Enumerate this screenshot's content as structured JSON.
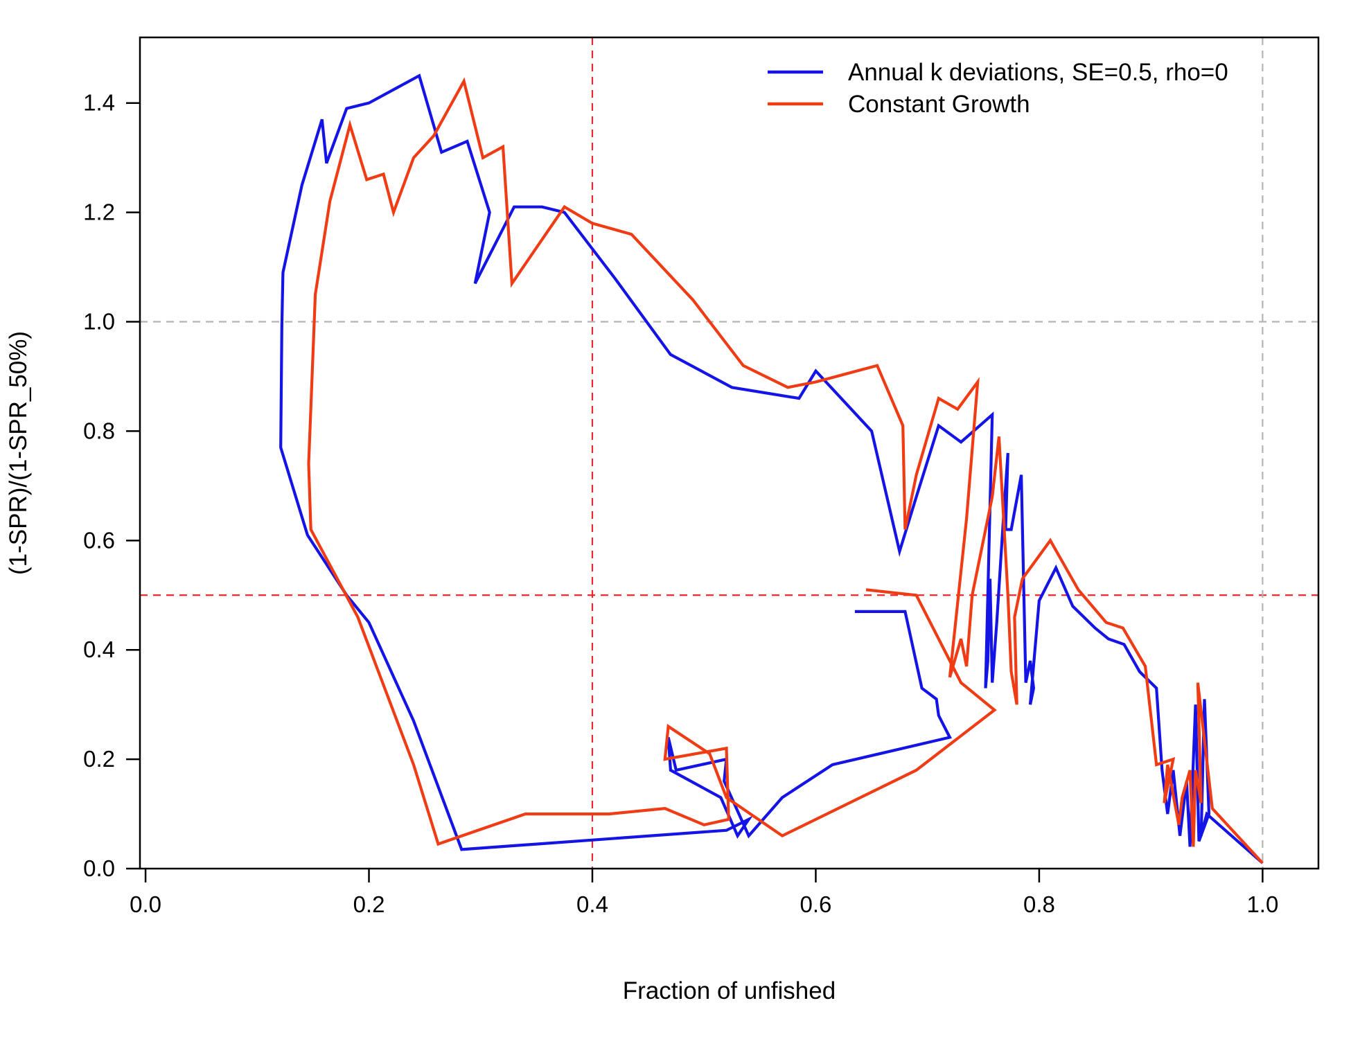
{
  "chart_data": {
    "type": "line",
    "xlabel": "Fraction of unfished",
    "ylabel": "(1-SPR)/(1-SPR_50%)",
    "xlim": [
      -0.005,
      1.05
    ],
    "ylim": [
      0,
      1.52
    ],
    "x_ticks": [
      "0.0",
      "0.2",
      "0.4",
      "0.6",
      "0.8",
      "1.0"
    ],
    "y_ticks": [
      "0.0",
      "0.2",
      "0.4",
      "0.6",
      "0.8",
      "1.0",
      "1.2",
      "1.4"
    ],
    "grid": false,
    "legend_position": "top-right",
    "reference_lines": [
      {
        "axis": "x",
        "value": 0.4,
        "color": "#e8282a",
        "style": "dashed"
      },
      {
        "axis": "y",
        "value": 0.5,
        "color": "#e8282a",
        "style": "dashed"
      },
      {
        "axis": "x",
        "value": 1.0,
        "color": "#b4b4b4",
        "style": "dashed"
      },
      {
        "axis": "y",
        "value": 1.0,
        "color": "#b4b4b4",
        "style": "dashed"
      }
    ],
    "series": [
      {
        "name": "Annual k deviations, SE=0.5, rho=0",
        "color": "#1414e6",
        "points": [
          [
            1.0,
            0.01
          ],
          [
            0.95,
            0.1
          ],
          [
            0.945,
            0.06
          ],
          [
            0.948,
            0.31
          ],
          [
            0.952,
            0.1
          ],
          [
            0.943,
            0.05
          ],
          [
            0.94,
            0.3
          ],
          [
            0.935,
            0.04
          ],
          [
            0.932,
            0.16
          ],
          [
            0.926,
            0.06
          ],
          [
            0.92,
            0.18
          ],
          [
            0.915,
            0.1
          ],
          [
            0.91,
            0.18
          ],
          [
            0.905,
            0.33
          ],
          [
            0.89,
            0.36
          ],
          [
            0.876,
            0.41
          ],
          [
            0.862,
            0.42
          ],
          [
            0.85,
            0.44
          ],
          [
            0.83,
            0.48
          ],
          [
            0.815,
            0.55
          ],
          [
            0.8,
            0.49
          ],
          [
            0.792,
            0.3
          ],
          [
            0.795,
            0.33
          ],
          [
            0.792,
            0.38
          ],
          [
            0.788,
            0.34
          ],
          [
            0.784,
            0.72
          ],
          [
            0.775,
            0.62
          ],
          [
            0.77,
            0.62
          ],
          [
            0.772,
            0.76
          ],
          [
            0.768,
            0.64
          ],
          [
            0.762,
            0.45
          ],
          [
            0.758,
            0.34
          ],
          [
            0.756,
            0.53
          ],
          [
            0.754,
            0.38
          ],
          [
            0.752,
            0.33
          ],
          [
            0.758,
            0.83
          ],
          [
            0.73,
            0.78
          ],
          [
            0.71,
            0.81
          ],
          [
            0.69,
            0.68
          ],
          [
            0.675,
            0.58
          ],
          [
            0.65,
            0.8
          ],
          [
            0.6,
            0.91
          ],
          [
            0.585,
            0.86
          ],
          [
            0.525,
            0.88
          ],
          [
            0.47,
            0.94
          ],
          [
            0.42,
            1.08
          ],
          [
            0.375,
            1.2
          ],
          [
            0.355,
            1.21
          ],
          [
            0.33,
            1.21
          ],
          [
            0.295,
            1.07
          ],
          [
            0.308,
            1.2
          ],
          [
            0.288,
            1.33
          ],
          [
            0.265,
            1.31
          ],
          [
            0.245,
            1.45
          ],
          [
            0.2,
            1.4
          ],
          [
            0.18,
            1.39
          ],
          [
            0.162,
            1.29
          ],
          [
            0.158,
            1.37
          ],
          [
            0.14,
            1.25
          ],
          [
            0.123,
            1.09
          ],
          [
            0.122,
            0.99
          ],
          [
            0.121,
            0.77
          ],
          [
            0.145,
            0.61
          ],
          [
            0.18,
            0.5
          ],
          [
            0.2,
            0.45
          ],
          [
            0.24,
            0.27
          ],
          [
            0.283,
            0.035
          ],
          [
            0.52,
            0.07
          ],
          [
            0.54,
            0.09
          ],
          [
            0.53,
            0.06
          ],
          [
            0.515,
            0.13
          ],
          [
            0.47,
            0.18
          ],
          [
            0.468,
            0.24
          ],
          [
            0.475,
            0.18
          ],
          [
            0.52,
            0.2
          ],
          [
            0.518,
            0.16
          ],
          [
            0.54,
            0.06
          ],
          [
            0.57,
            0.13
          ],
          [
            0.615,
            0.19
          ],
          [
            0.72,
            0.24
          ],
          [
            0.71,
            0.28
          ],
          [
            0.708,
            0.31
          ],
          [
            0.695,
            0.33
          ],
          [
            0.68,
            0.47
          ],
          [
            0.635,
            0.47
          ]
        ]
      },
      {
        "name": "Constant Growth",
        "color": "#f03c14",
        "points": [
          [
            1.0,
            0.01
          ],
          [
            0.955,
            0.11
          ],
          [
            0.942,
            0.34
          ],
          [
            0.945,
            0.12
          ],
          [
            0.94,
            0.18
          ],
          [
            0.938,
            0.04
          ],
          [
            0.935,
            0.18
          ],
          [
            0.928,
            0.13
          ],
          [
            0.925,
            0.08
          ],
          [
            0.915,
            0.19
          ],
          [
            0.912,
            0.12
          ],
          [
            0.92,
            0.2
          ],
          [
            0.905,
            0.19
          ],
          [
            0.895,
            0.37
          ],
          [
            0.875,
            0.44
          ],
          [
            0.86,
            0.45
          ],
          [
            0.835,
            0.51
          ],
          [
            0.81,
            0.6
          ],
          [
            0.785,
            0.53
          ],
          [
            0.778,
            0.46
          ],
          [
            0.78,
            0.3
          ],
          [
            0.775,
            0.36
          ],
          [
            0.772,
            0.5
          ],
          [
            0.764,
            0.79
          ],
          [
            0.758,
            0.68
          ],
          [
            0.74,
            0.5
          ],
          [
            0.735,
            0.37
          ],
          [
            0.73,
            0.42
          ],
          [
            0.72,
            0.35
          ],
          [
            0.735,
            0.64
          ],
          [
            0.745,
            0.89
          ],
          [
            0.727,
            0.84
          ],
          [
            0.71,
            0.86
          ],
          [
            0.69,
            0.72
          ],
          [
            0.68,
            0.62
          ],
          [
            0.678,
            0.81
          ],
          [
            0.655,
            0.92
          ],
          [
            0.6,
            0.89
          ],
          [
            0.575,
            0.88
          ],
          [
            0.535,
            0.92
          ],
          [
            0.49,
            1.04
          ],
          [
            0.435,
            1.16
          ],
          [
            0.4,
            1.18
          ],
          [
            0.375,
            1.21
          ],
          [
            0.328,
            1.07
          ],
          [
            0.32,
            1.32
          ],
          [
            0.302,
            1.3
          ],
          [
            0.285,
            1.44
          ],
          [
            0.258,
            1.34
          ],
          [
            0.24,
            1.3
          ],
          [
            0.222,
            1.2
          ],
          [
            0.213,
            1.27
          ],
          [
            0.198,
            1.26
          ],
          [
            0.183,
            1.36
          ],
          [
            0.165,
            1.22
          ],
          [
            0.152,
            1.05
          ],
          [
            0.146,
            0.74
          ],
          [
            0.148,
            0.62
          ],
          [
            0.19,
            0.46
          ],
          [
            0.24,
            0.19
          ],
          [
            0.262,
            0.045
          ],
          [
            0.34,
            0.1
          ],
          [
            0.415,
            0.1
          ],
          [
            0.465,
            0.11
          ],
          [
            0.5,
            0.08
          ],
          [
            0.522,
            0.09
          ],
          [
            0.52,
            0.22
          ],
          [
            0.465,
            0.2
          ],
          [
            0.468,
            0.26
          ],
          [
            0.505,
            0.21
          ],
          [
            0.52,
            0.13
          ],
          [
            0.57,
            0.06
          ],
          [
            0.69,
            0.18
          ],
          [
            0.76,
            0.29
          ],
          [
            0.73,
            0.34
          ],
          [
            0.69,
            0.5
          ],
          [
            0.645,
            0.51
          ]
        ]
      }
    ]
  }
}
